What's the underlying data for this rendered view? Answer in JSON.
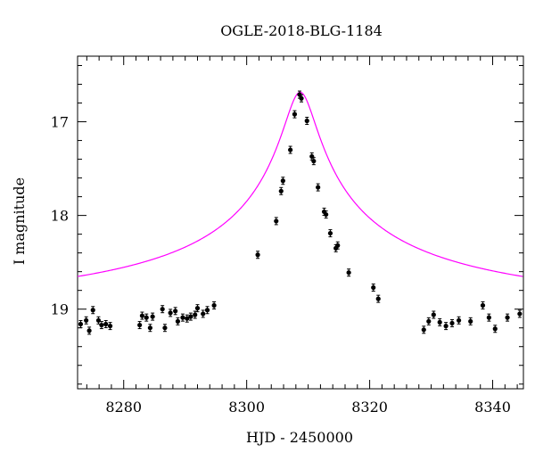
{
  "chart_data": {
    "type": "scatter",
    "title": "OGLE-2018-BLG-1184",
    "xlabel": "HJD - 2450000",
    "ylabel": "I magnitude",
    "xlim": [
      8272.5,
      8345
    ],
    "ylim": [
      19.85,
      16.3
    ],
    "y_inverted": true,
    "x_ticks": [
      8280,
      8300,
      8320,
      8340
    ],
    "x_tick_labels": [
      "8280",
      "8300",
      "8320",
      "8340"
    ],
    "y_ticks": [
      17,
      18,
      19
    ],
    "y_tick_labels": [
      "17",
      "18",
      "19"
    ],
    "grid": false,
    "legend": "none",
    "colors": {
      "points": "#000000",
      "model": "#ff00ff",
      "axes": "#000000"
    },
    "series": [
      {
        "type": "scatter",
        "x": [
          8273.0,
          8273.9,
          8274.4,
          8275.0,
          8275.9,
          8276.4,
          8277.1,
          8277.8,
          8282.6,
          8283.0,
          8283.7,
          8284.3,
          8284.7,
          8286.3,
          8286.7,
          8287.6,
          8288.4,
          8288.8,
          8289.6,
          8290.3,
          8290.9,
          8291.6,
          8292.0,
          8292.9,
          8293.6,
          8294.7,
          8301.8,
          8304.8,
          8305.6,
          8305.9,
          8307.1,
          8307.8,
          8308.6,
          8308.9,
          8309.8,
          8310.6,
          8310.9,
          8311.6,
          8312.6,
          8312.9,
          8313.6,
          8314.5,
          8314.8,
          8316.6,
          8320.6,
          8321.4,
          8328.8,
          8329.6,
          8330.4,
          8331.4,
          8332.4,
          8333.4,
          8334.5,
          8336.4,
          8338.4,
          8339.4,
          8340.4,
          8342.4,
          8344.4
        ],
        "y": [
          19.16,
          19.12,
          19.23,
          19.01,
          19.12,
          19.17,
          19.16,
          19.18,
          19.17,
          19.07,
          19.09,
          19.2,
          19.08,
          19.0,
          19.2,
          19.04,
          19.02,
          19.13,
          19.09,
          19.1,
          19.08,
          19.06,
          18.99,
          19.05,
          19.01,
          18.96,
          18.42,
          18.06,
          17.74,
          17.63,
          17.3,
          16.92,
          16.71,
          16.75,
          16.99,
          17.37,
          17.42,
          17.7,
          17.96,
          17.99,
          18.19,
          18.35,
          18.32,
          18.61,
          18.77,
          18.89,
          19.22,
          19.13,
          19.06,
          19.14,
          19.18,
          19.15,
          19.12,
          19.13,
          18.96,
          19.09,
          19.21,
          19.09,
          19.05
        ]
      },
      {
        "type": "line",
        "model": "point-lens",
        "t0": 8308.7,
        "baseline": 19.14,
        "peak_offset": 2.455,
        "shape_width": 2.4
      }
    ]
  }
}
